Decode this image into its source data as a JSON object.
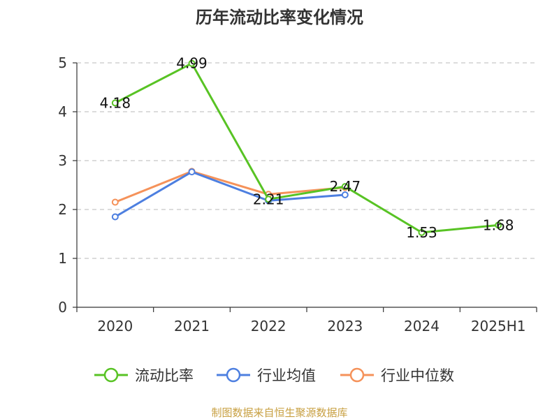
{
  "chart_data": {
    "type": "line",
    "title": "历年流动比率变化情况",
    "xlabel": "",
    "ylabel": "",
    "categories": [
      "2020",
      "2021",
      "2022",
      "2023",
      "2024",
      "2025H1"
    ],
    "yticks": [
      "0",
      "1",
      "2",
      "3",
      "4",
      "5"
    ],
    "ylim": [
      0,
      5
    ],
    "grid": true,
    "legend_position": "bottom",
    "series": [
      {
        "name": "流动比率",
        "color": "#58c324",
        "values": [
          4.18,
          4.99,
          2.21,
          2.47,
          1.53,
          1.68
        ],
        "labels": [
          "4.18",
          "4.99",
          "2.21",
          "2.47",
          "1.53",
          "1.68"
        ]
      },
      {
        "name": "行业均值",
        "color": "#4d7fe0",
        "values": [
          1.85,
          2.77,
          2.18,
          2.3,
          null,
          null
        ]
      },
      {
        "name": "行业中位数",
        "color": "#f5925a",
        "values": [
          2.15,
          2.78,
          2.31,
          2.45,
          null,
          null
        ]
      }
    ]
  },
  "source_note": "制图数据来自恒生聚源数据库"
}
